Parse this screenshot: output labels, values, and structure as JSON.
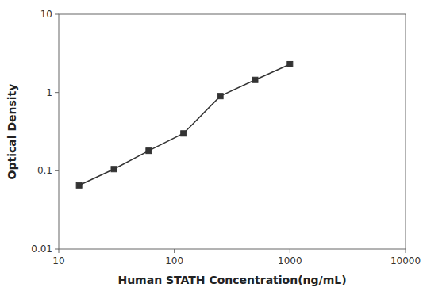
{
  "chart_data": {
    "type": "line",
    "x": [
      15,
      30,
      60,
      120,
      250,
      500,
      1000
    ],
    "values": [
      0.065,
      0.105,
      0.18,
      0.3,
      0.9,
      1.45,
      2.3
    ],
    "color": "#333333",
    "marker": "square",
    "xlabel": "Human STATH Concentration(ng/mL)",
    "ylabel": "Optical Density",
    "log": true,
    "xlim": [
      10,
      10000
    ],
    "ylim": [
      0.01,
      10
    ],
    "xticks": [
      10,
      100,
      1000,
      10000
    ],
    "yticks": [
      0.01,
      0.1,
      1,
      10
    ]
  }
}
